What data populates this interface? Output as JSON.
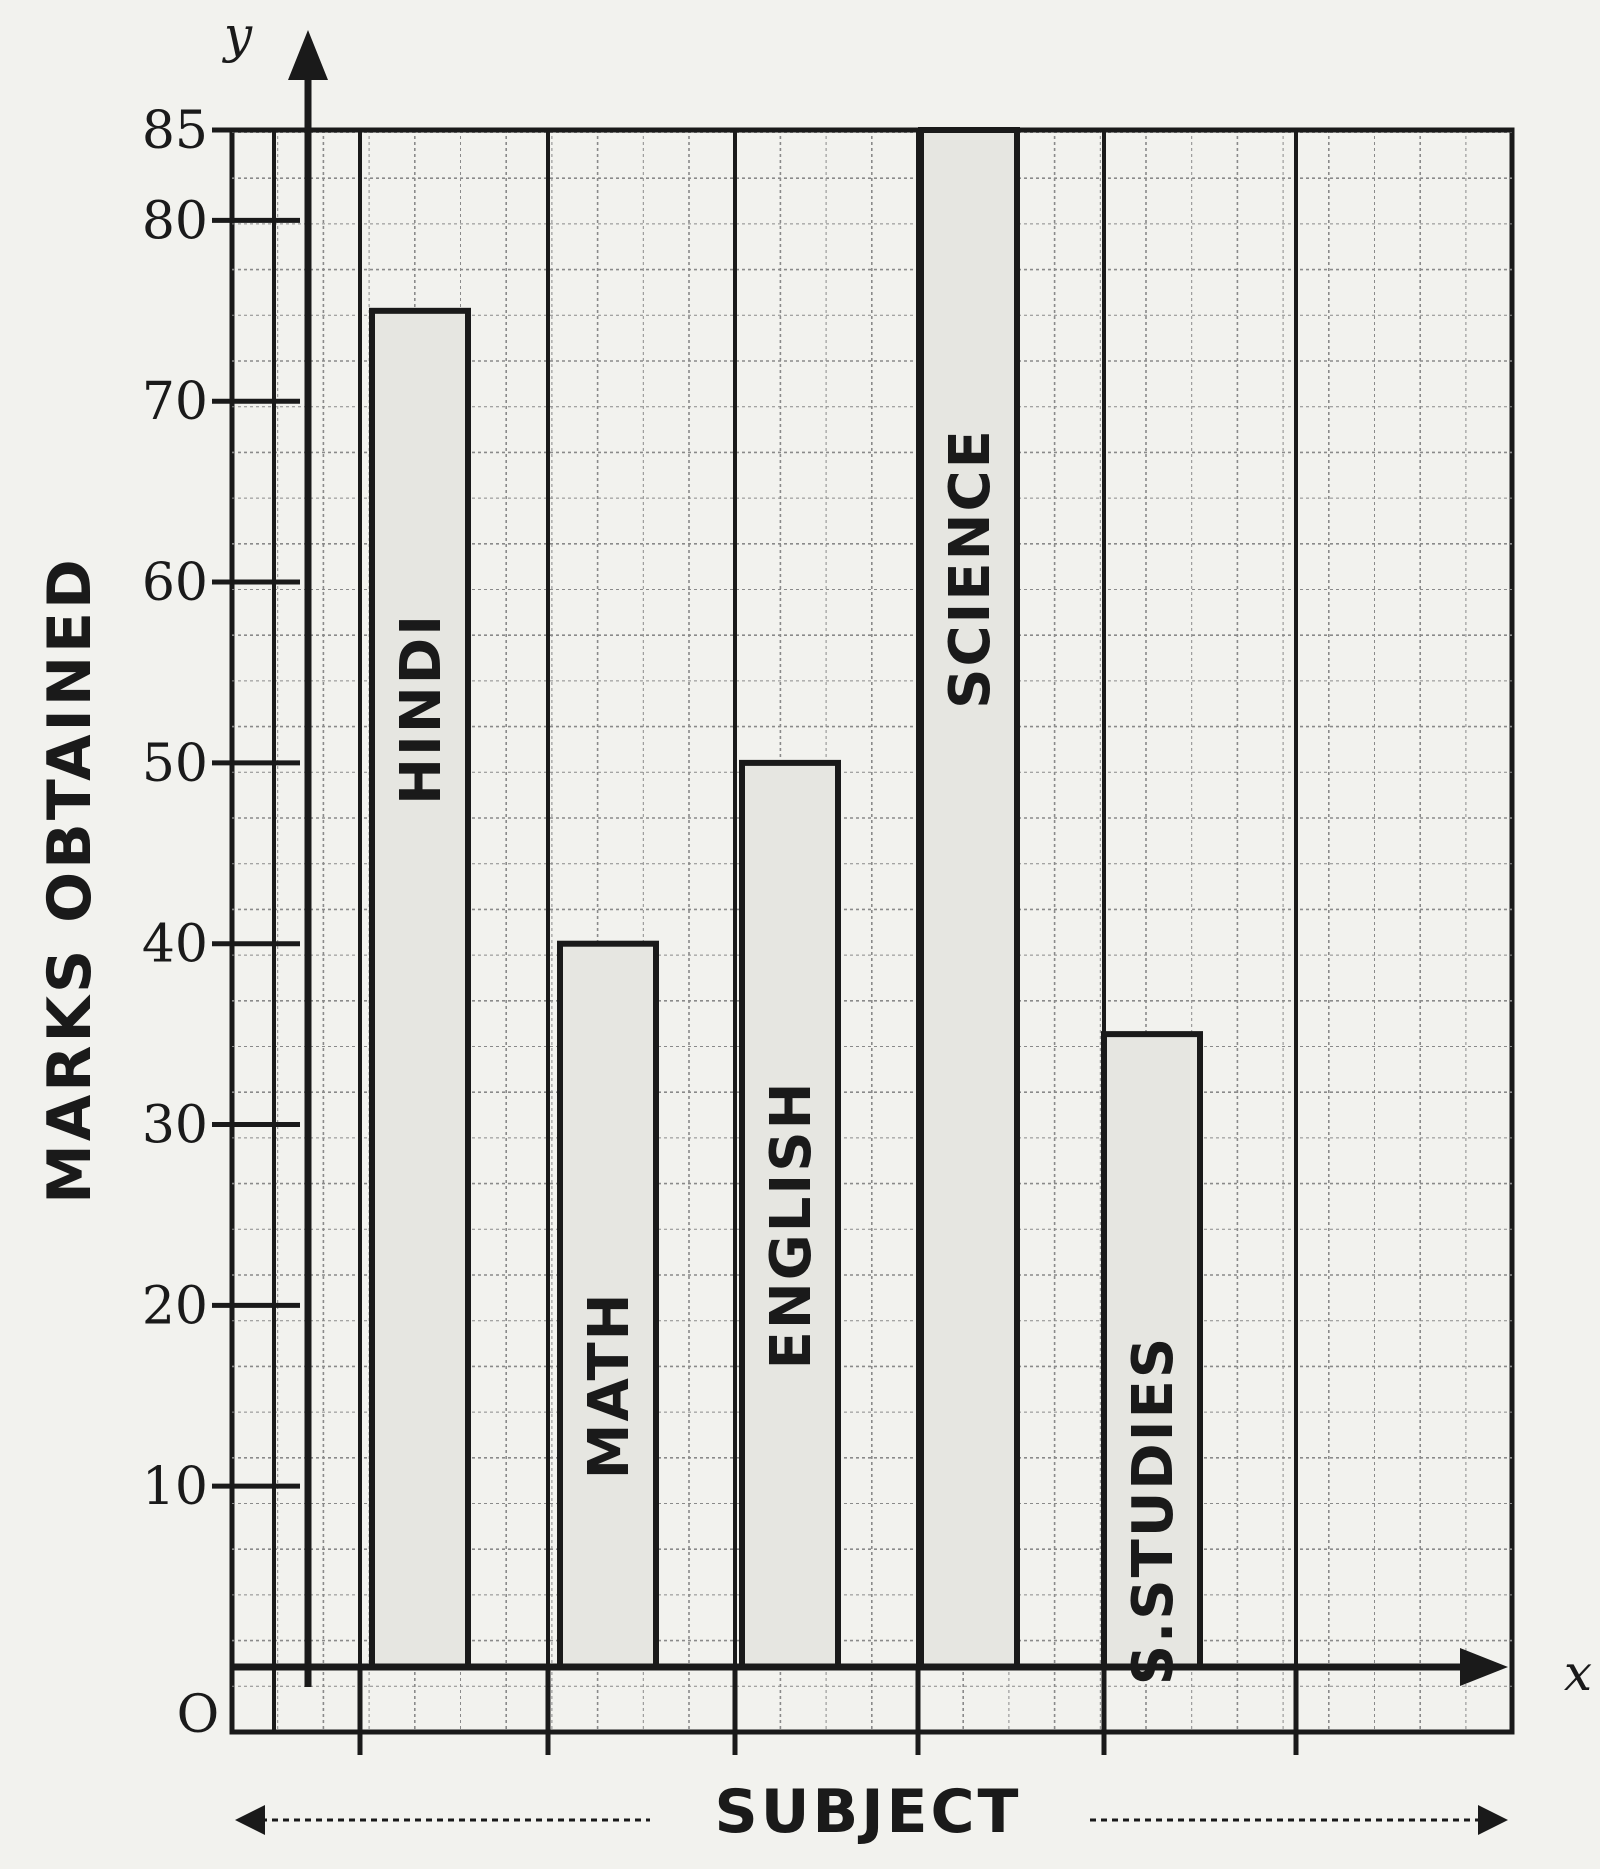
{
  "chart_data": {
    "type": "bar",
    "categories": [
      "HINDI",
      "MATH",
      "ENGLISH",
      "SCIENCE",
      "S.STUDIES"
    ],
    "values": [
      75,
      40,
      50,
      85,
      35
    ],
    "xlabel": "SUBJECT",
    "ylabel": "MARKS OBTAINED",
    "y_axis_letter": "y",
    "x_axis_letter": "x",
    "origin_label": "O",
    "y_ticks": [
      10,
      20,
      30,
      40,
      50,
      60,
      70,
      80,
      85
    ],
    "y_tick_labels": [
      "10",
      "20",
      "30",
      "40",
      "50",
      "60",
      "70",
      "80",
      "85"
    ],
    "ylim": [
      0,
      85
    ],
    "grid": true,
    "colors": {
      "bar_fill": "#e6e6e1",
      "ink": "#1a1a1a",
      "grid": "#8a8a8a",
      "paper": "#f2f2ee"
    }
  }
}
